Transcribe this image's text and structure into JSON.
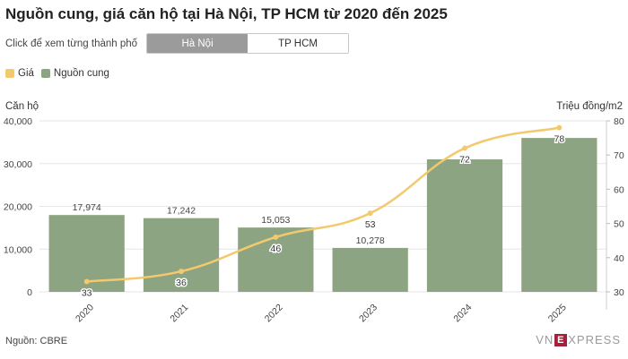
{
  "title": "Nguồn cung, giá căn hộ tại Hà Nội, TP HCM từ 2020 đến 2025",
  "toggle": {
    "prompt": "Click để xem từng thành phố",
    "options": [
      "Hà Nội",
      "TP HCM"
    ],
    "selected": "Hà Nội"
  },
  "source": "Nguồn: CBRE",
  "brand": {
    "pre": "VN",
    "box": "E",
    "post": "XPRESS"
  },
  "colors": {
    "bar": "#8ca481",
    "line": "#f3c96d",
    "active_toggle": "#9b9b9b",
    "brand": "#a5203b"
  },
  "chart_data": {
    "type": "bar",
    "categories": [
      "2020",
      "2021",
      "2022",
      "2023",
      "2024",
      "2025"
    ],
    "series": [
      {
        "name": "Nguồn cung",
        "type": "bar",
        "axis": "left",
        "values": [
          17974,
          17242,
          15053,
          10278,
          31000,
          36000
        ],
        "labels": [
          "17,974",
          "17,242",
          "15,053",
          "10,278",
          "",
          ""
        ]
      },
      {
        "name": "Giá",
        "type": "line",
        "axis": "right",
        "values": [
          33,
          36,
          46,
          53,
          72,
          78
        ],
        "labels": [
          "33",
          "36",
          "46",
          "53",
          "72",
          "78"
        ]
      }
    ],
    "legend": {
      "items": [
        "Giá",
        "Nguồn cung"
      ],
      "position": "top-left"
    },
    "ylabel_left": "Căn hộ",
    "ylabel_right": "Triệu đồng/m2",
    "ylim_left": [
      0,
      40000
    ],
    "ylim_right": [
      30,
      80
    ],
    "yticks_left": [
      "0",
      "10,000",
      "20,000",
      "30,000",
      "40,000"
    ],
    "yticks_left_values": [
      0,
      10000,
      20000,
      30000,
      40000
    ],
    "yticks_right": [
      "30",
      "40",
      "50",
      "60",
      "70",
      "80"
    ],
    "yticks_right_values": [
      30,
      40,
      50,
      60,
      70,
      80
    ],
    "grid": true
  }
}
